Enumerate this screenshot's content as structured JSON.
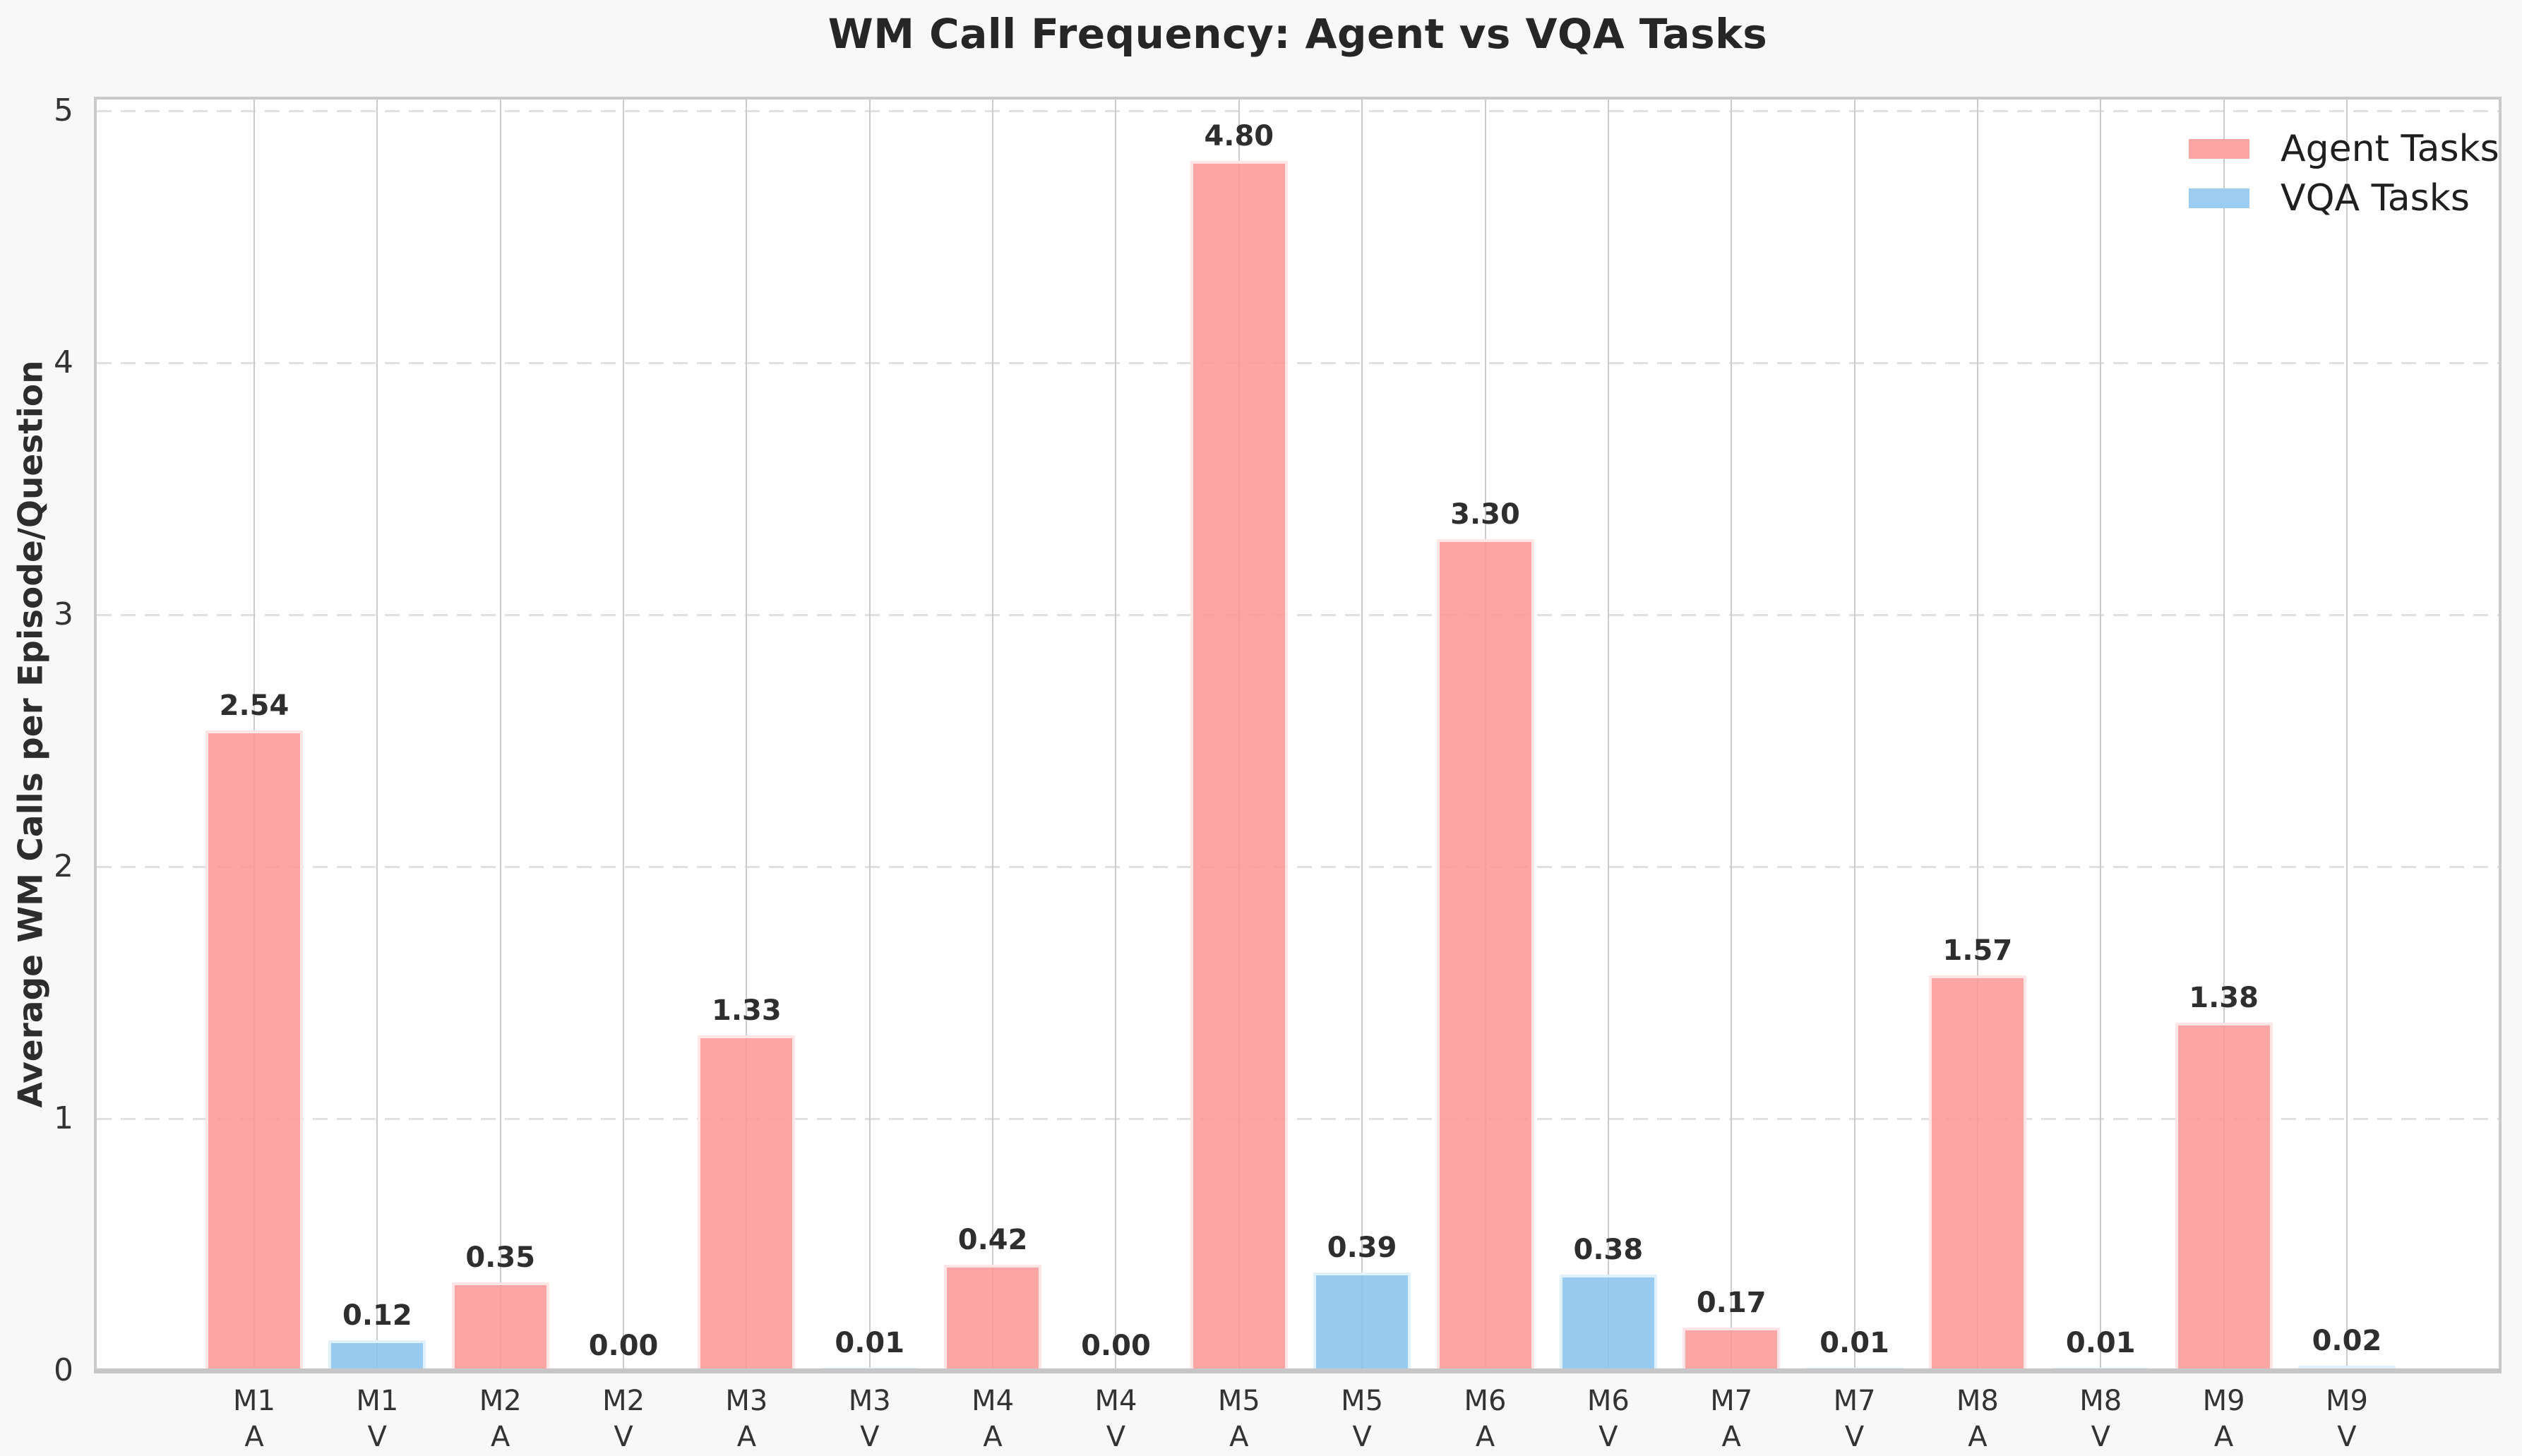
{
  "chart_data": {
    "type": "bar",
    "title": "WM Call Frequency: Agent vs VQA Tasks",
    "ylabel": "Average WM Calls per Episode/Question",
    "xlabel": "",
    "ylim": [
      0,
      5
    ],
    "yticks": [
      "0",
      "1",
      "2",
      "3",
      "4",
      "5"
    ],
    "grid": {
      "horizontal": "dashed",
      "vertical": "solid",
      "on": true
    },
    "legend": {
      "position": "upper right",
      "entries": [
        {
          "label": "Agent Tasks",
          "series": "agent",
          "color": "#FCA5A5"
        },
        {
          "label": "VQA Tasks",
          "series": "vqa",
          "color": "#9CCDF0"
        }
      ]
    },
    "bars": [
      {
        "model": "M1",
        "task": "A",
        "series": "agent",
        "value": 2.54,
        "label": "2.54"
      },
      {
        "model": "M1",
        "task": "V",
        "series": "vqa",
        "value": 0.12,
        "label": "0.12"
      },
      {
        "model": "M2",
        "task": "A",
        "series": "agent",
        "value": 0.35,
        "label": "0.35"
      },
      {
        "model": "M2",
        "task": "V",
        "series": "vqa",
        "value": 0.0,
        "label": "0.00"
      },
      {
        "model": "M3",
        "task": "A",
        "series": "agent",
        "value": 1.33,
        "label": "1.33"
      },
      {
        "model": "M3",
        "task": "V",
        "series": "vqa",
        "value": 0.01,
        "label": "0.01"
      },
      {
        "model": "M4",
        "task": "A",
        "series": "agent",
        "value": 0.42,
        "label": "0.42"
      },
      {
        "model": "M4",
        "task": "V",
        "series": "vqa",
        "value": 0.0,
        "label": "0.00"
      },
      {
        "model": "M5",
        "task": "A",
        "series": "agent",
        "value": 4.8,
        "label": "4.80"
      },
      {
        "model": "M5",
        "task": "V",
        "series": "vqa",
        "value": 0.39,
        "label": "0.39"
      },
      {
        "model": "M6",
        "task": "A",
        "series": "agent",
        "value": 3.3,
        "label": "3.30"
      },
      {
        "model": "M6",
        "task": "V",
        "series": "vqa",
        "value": 0.38,
        "label": "0.38"
      },
      {
        "model": "M7",
        "task": "A",
        "series": "agent",
        "value": 0.17,
        "label": "0.17"
      },
      {
        "model": "M7",
        "task": "V",
        "series": "vqa",
        "value": 0.01,
        "label": "0.01"
      },
      {
        "model": "M8",
        "task": "A",
        "series": "agent",
        "value": 1.57,
        "label": "1.57"
      },
      {
        "model": "M8",
        "task": "V",
        "series": "vqa",
        "value": 0.01,
        "label": "0.01"
      },
      {
        "model": "M9",
        "task": "A",
        "series": "agent",
        "value": 1.38,
        "label": "1.38"
      },
      {
        "model": "M9",
        "task": "V",
        "series": "vqa",
        "value": 0.02,
        "label": "0.02"
      }
    ],
    "colors": {
      "agent_fill": "#FCA5A5",
      "vqa_fill": "#9CCDF0",
      "figure_background": "#F8F8F8",
      "plot_background": "#FFFFFF",
      "text": "#2D2D2D"
    }
  }
}
